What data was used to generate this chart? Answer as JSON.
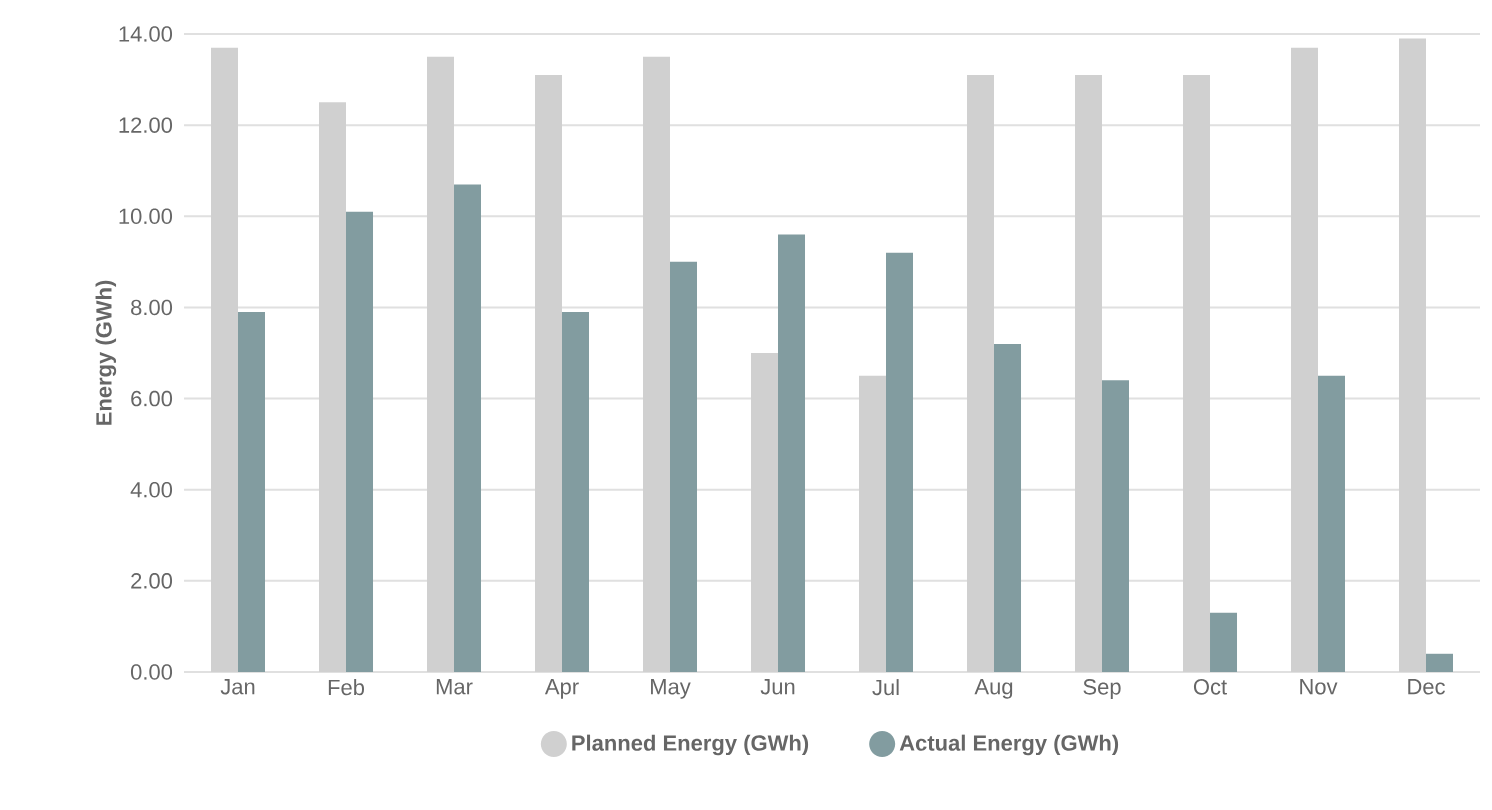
{
  "chart_data": {
    "type": "bar",
    "ylabel": "Energy (GWh)",
    "categories": [
      "Jan",
      "Feb",
      "Mar",
      "Apr",
      "May",
      "Jun",
      "Jul",
      "Aug",
      "Sep",
      "Oct",
      "Nov",
      "Dec"
    ],
    "series": [
      {
        "name": "Planned Energy (GWh)",
        "color": "#d0d0d0",
        "values": [
          13.7,
          12.5,
          13.5,
          13.1,
          13.5,
          7.0,
          6.5,
          13.1,
          13.1,
          13.1,
          13.7,
          13.9
        ]
      },
      {
        "name": "Actual Energy (GWh)",
        "color": "#829ca0",
        "values": [
          7.9,
          10.1,
          10.7,
          7.9,
          9.0,
          9.6,
          9.2,
          7.2,
          6.4,
          1.3,
          6.5,
          0.4
        ]
      }
    ],
    "ylim": [
      0,
      14
    ],
    "yticks": [
      {
        "value": 0,
        "label": "0.00"
      },
      {
        "value": 2,
        "label": "2.00"
      },
      {
        "value": 4,
        "label": "4.00"
      },
      {
        "value": 6,
        "label": "6.00"
      },
      {
        "value": 8,
        "label": "8.00"
      },
      {
        "value": 10,
        "label": "10.00"
      },
      {
        "value": 12,
        "label": "12.00"
      },
      {
        "value": 14,
        "label": "14.00"
      }
    ],
    "grid": "y",
    "legend": "bottom"
  }
}
